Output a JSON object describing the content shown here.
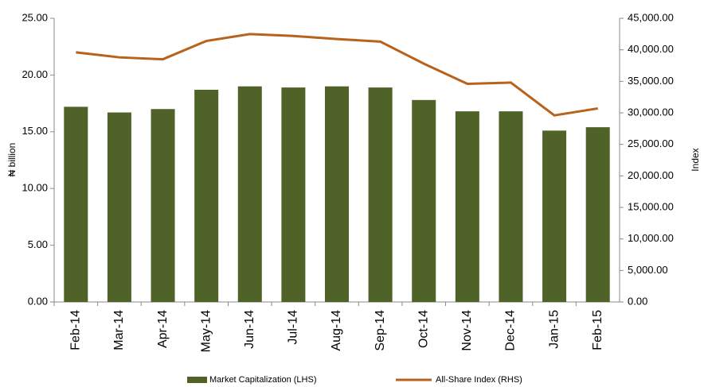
{
  "chart_data": {
    "type": "combo",
    "y_label": "₦ billion",
    "y2_label": "Index",
    "categories": [
      "Feb-14",
      "Mar-14",
      "Apr-14",
      "May-14",
      "Jun-14",
      "Jul-14",
      "Aug-14",
      "Sep-14",
      "Oct-14",
      "Nov-14",
      "Dec-14",
      "Jan-15",
      "Feb-15"
    ],
    "series": [
      {
        "name": "Market Capitalization (LHS)",
        "type": "bar",
        "color": "#4f6228",
        "values": [
          17.2,
          16.7,
          17.0,
          18.7,
          19.0,
          18.9,
          19.0,
          18.9,
          17.8,
          16.8,
          16.8,
          15.1,
          15.4
        ]
      },
      {
        "name": "All-Share Index (RHS)",
        "type": "line",
        "axis": "y2",
        "color": "#b8621b",
        "values": [
          39600,
          38800,
          38500,
          41400,
          42500,
          42200,
          41700,
          41300,
          37800,
          34600,
          34800,
          29600,
          30700
        ]
      }
    ],
    "ylim": [
      0,
      25
    ],
    "yticks": [
      {
        "value": 0,
        "label": "0.00"
      },
      {
        "value": 5,
        "label": "5.00"
      },
      {
        "value": 10,
        "label": "10.00"
      },
      {
        "value": 15,
        "label": "15.00"
      },
      {
        "value": 20,
        "label": "20.00"
      },
      {
        "value": 25,
        "label": "25.00"
      }
    ],
    "y2lim": [
      0,
      45000
    ],
    "y2ticks": [
      {
        "value": 0,
        "label": "0.00"
      },
      {
        "value": 5000,
        "label": "5,000.00"
      },
      {
        "value": 10000,
        "label": "10,000.00"
      },
      {
        "value": 15000,
        "label": "15,000.00"
      },
      {
        "value": 20000,
        "label": "20,000.00"
      },
      {
        "value": 25000,
        "label": "25,000.00"
      },
      {
        "value": 30000,
        "label": "30,000.00"
      },
      {
        "value": 35000,
        "label": "35,000.00"
      },
      {
        "value": 40000,
        "label": "40,000.00"
      },
      {
        "value": 45000,
        "label": "45,000.00"
      }
    ],
    "grid": false,
    "legend": "bottom"
  }
}
